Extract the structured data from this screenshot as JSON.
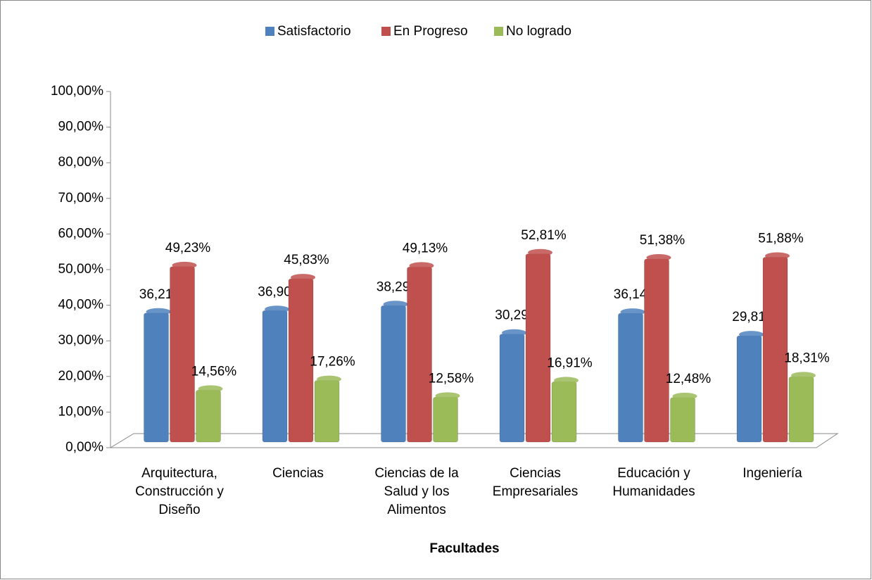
{
  "chart_data": {
    "type": "bar",
    "x_label": "Facultades",
    "categories": [
      "Arquitectura, Construcción y Diseño",
      "Ciencias",
      "Ciencias de la Salud y los Alimentos",
      "Ciencias Empresariales",
      "Educación y Humanidades",
      "Ingeniería"
    ],
    "series": [
      {
        "name": "Satisfactorio",
        "color": "#4f81bd",
        "values": [
          36.21,
          36.9,
          38.29,
          30.29,
          36.14,
          29.81
        ],
        "value_labels": [
          "36,21%",
          "36,90%",
          "38,29%",
          "30,29%",
          "36,14%",
          "29,81%"
        ]
      },
      {
        "name": "En Progreso",
        "color": "#c0504d",
        "values": [
          49.23,
          45.83,
          49.13,
          52.81,
          51.38,
          51.88
        ],
        "value_labels": [
          "49,23%",
          "45,83%",
          "49,13%",
          "52,81%",
          "51,38%",
          "51,88%"
        ]
      },
      {
        "name": "No logrado",
        "color": "#9bbb59",
        "values": [
          14.56,
          17.26,
          12.58,
          16.91,
          12.48,
          18.31
        ],
        "value_labels": [
          "14,56%",
          "17,26%",
          "12,58%",
          "16,91%",
          "12,48%",
          "18,31%"
        ]
      }
    ],
    "ylim": [
      0,
      100
    ],
    "yticks": [
      {
        "value": 0,
        "label": "0,00%"
      },
      {
        "value": 10,
        "label": "10,00%"
      },
      {
        "value": 20,
        "label": "20,00%"
      },
      {
        "value": 30,
        "label": "30,00%"
      },
      {
        "value": 40,
        "label": "40,00%"
      },
      {
        "value": 50,
        "label": "50,00%"
      },
      {
        "value": 60,
        "label": "60,00%"
      },
      {
        "value": 70,
        "label": "70,00%"
      },
      {
        "value": 80,
        "label": "80,00%"
      },
      {
        "value": 90,
        "label": "90,00%"
      },
      {
        "value": 100,
        "label": "100,00%"
      }
    ],
    "legend": "top",
    "grid": false
  }
}
